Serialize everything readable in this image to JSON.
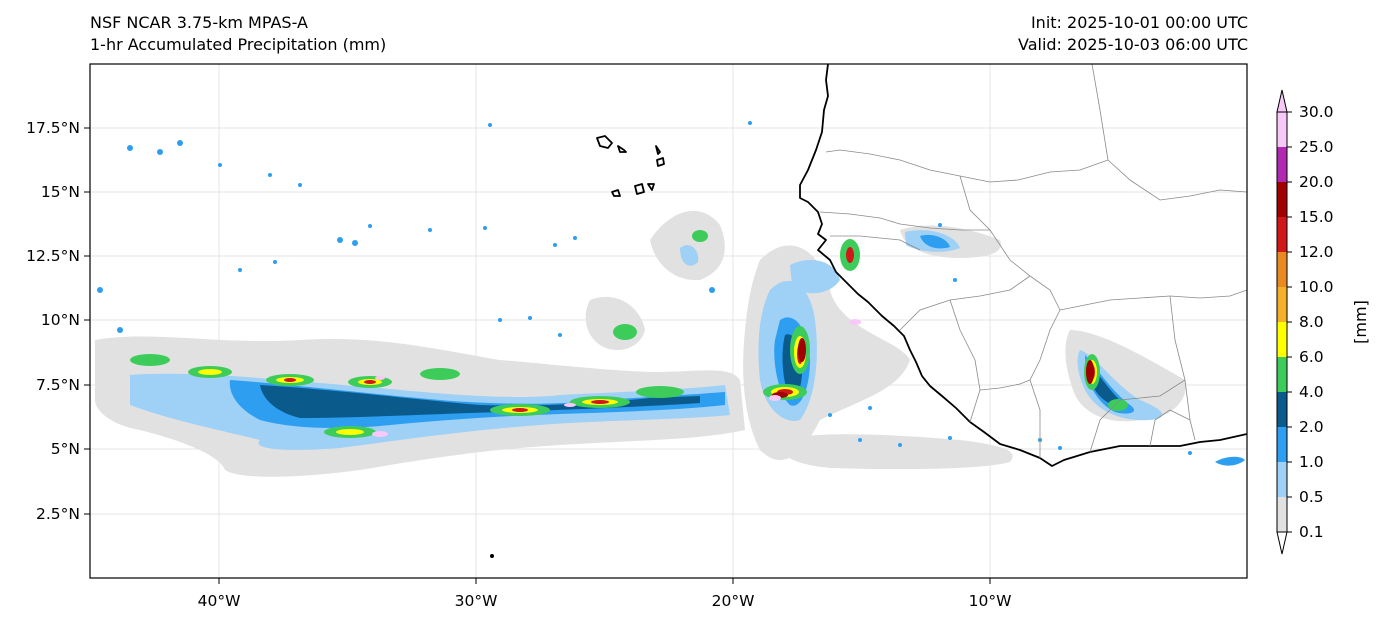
{
  "header": {
    "model": "NSF NCAR 3.75-km MPAS-A",
    "field": "1-hr Accumulated Precipitation (mm)",
    "init": "Init: 2025-10-01 00:00 UTC",
    "valid": "Valid: 2025-10-03 06:00 UTC"
  },
  "map": {
    "lon_range": [
      -45,
      0
    ],
    "lat_range": [
      0,
      20
    ],
    "x_ticks": [
      "40°W",
      "30°W",
      "20°W",
      "10°W"
    ],
    "y_ticks": [
      "2.5°N",
      "5°N",
      "7.5°N",
      "10°N",
      "12.5°N",
      "15°N",
      "17.5°N"
    ]
  },
  "colorbar": {
    "units": "[mm]",
    "levels": [
      "0.1",
      "0.5",
      "1.0",
      "2.0",
      "4.0",
      "6.0",
      "8.0",
      "10.0",
      "12.0",
      "15.0",
      "20.0",
      "25.0",
      "30.0"
    ],
    "colors": [
      "#e1e1e1",
      "#9fd0f5",
      "#2e9ef0",
      "#0a5a8c",
      "#3dcc5a",
      "#ffff00",
      "#f5b02a",
      "#e88a20",
      "#d01818",
      "#a00000",
      "#b02ab0",
      "#f8c8f8"
    ]
  }
}
